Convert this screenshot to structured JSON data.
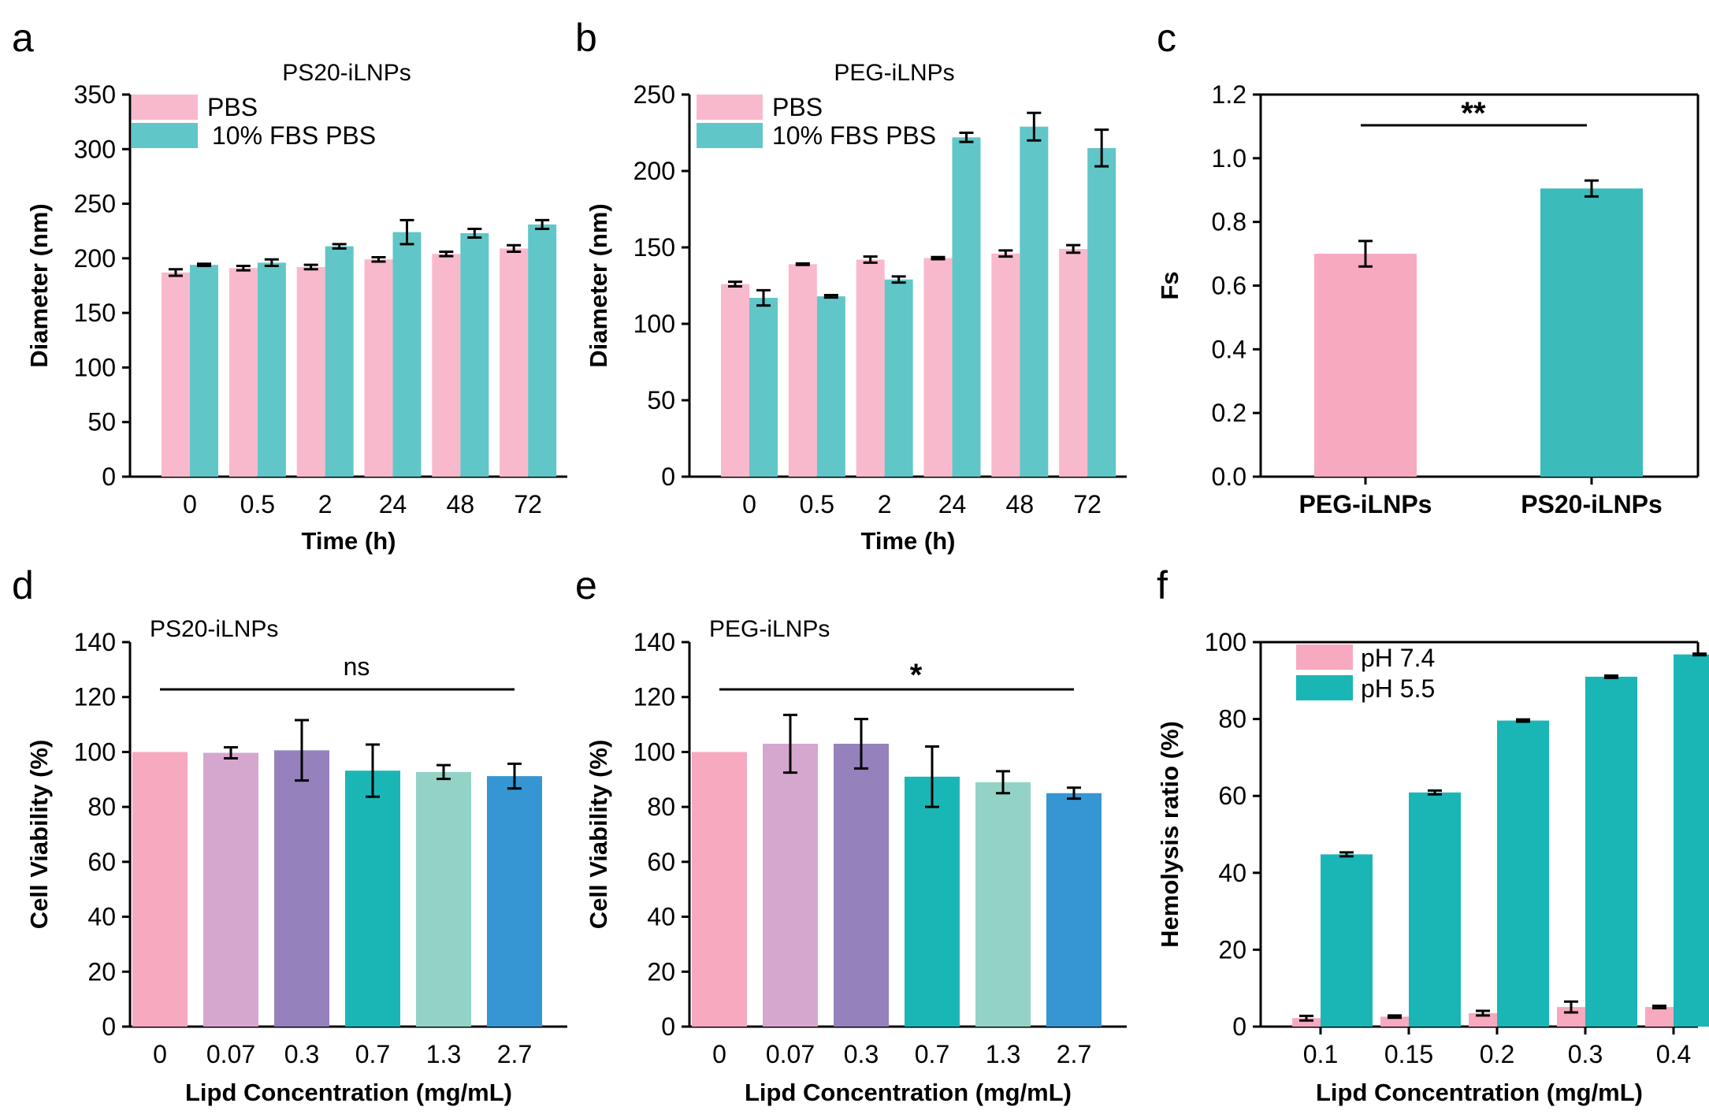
{
  "figure": {
    "colors": {
      "pink": "#f9b9cd",
      "teal": "#61c6c7",
      "teal_dark": "#3bbbb9",
      "pink_c": "#f7a9c0",
      "viab": [
        "#f7a9c0",
        "#d6a7ce",
        "#9581bb",
        "#1ab6b6",
        "#93d3c6",
        "#3596d3"
      ],
      "hemo_pink": "#f7a9c0",
      "hemo_teal": "#1ab6b6"
    }
  },
  "chart_data": [
    {
      "id": "a",
      "panel_letter": "a",
      "type": "bar",
      "title": "PS20-iLNPs",
      "xlabel": "Time (h)",
      "ylabel": "Diameter (nm)",
      "ylim": [
        0,
        350
      ],
      "yticks": [
        "0",
        "50",
        "100",
        "150",
        "200",
        "250",
        "300",
        "350"
      ],
      "categories": [
        "0",
        "0.5",
        "2",
        "24",
        "48",
        "72"
      ],
      "series": [
        {
          "name": "PBS",
          "values": [
            187,
            191,
            192,
            199,
            204,
            209
          ],
          "errors": [
            3,
            2,
            2,
            2,
            2,
            3
          ]
        },
        {
          "name": "10% FBS PBS",
          "values": [
            194,
            196,
            211,
            224,
            223,
            231
          ],
          "errors": [
            1,
            3,
            2,
            11,
            4,
            4
          ]
        }
      ]
    },
    {
      "id": "b",
      "panel_letter": "b",
      "type": "bar",
      "title": "PEG-iLNPs",
      "xlabel": "Time (h)",
      "ylabel": "Diameter (nm)",
      "ylim": [
        0,
        250
      ],
      "yticks": [
        "0",
        "50",
        "100",
        "150",
        "200",
        "250"
      ],
      "categories": [
        "0",
        "0.5",
        "2",
        "24",
        "48",
        "72"
      ],
      "series": [
        {
          "name": "PBS",
          "values": [
            126,
            139,
            142,
            143,
            146,
            149
          ],
          "errors": [
            1.5,
            0.5,
            2,
            0.7,
            2,
            2.5
          ]
        },
        {
          "name": "10% FBS PBS",
          "values": [
            117,
            118,
            129,
            222,
            229,
            215
          ],
          "errors": [
            5,
            0.8,
            2,
            3,
            9,
            12
          ]
        }
      ]
    },
    {
      "id": "c",
      "panel_letter": "c",
      "type": "bar",
      "title": "",
      "xlabel": "",
      "ylabel": "Fs",
      "ylim": [
        0,
        1.2
      ],
      "yticks": [
        "0.0",
        "0.2",
        "0.4",
        "0.6",
        "0.8",
        "1.0",
        "1.2"
      ],
      "categories": [
        "PEG-iLNPs",
        "PS20-iLNPs"
      ],
      "values": [
        0.7,
        0.905
      ],
      "errors": [
        0.04,
        0.025
      ],
      "significance": "**"
    },
    {
      "id": "d",
      "panel_letter": "d",
      "type": "bar",
      "title": "PS20-iLNPs",
      "xlabel": "Lipd Concentration (mg/mL)",
      "ylabel": "Cell Viability (%)",
      "ylim": [
        0,
        140
      ],
      "yticks": [
        "0",
        "20",
        "40",
        "60",
        "80",
        "100",
        "120",
        "140"
      ],
      "categories": [
        "0",
        "0.07",
        "0.3",
        "0.7",
        "1.3",
        "2.7"
      ],
      "values": [
        100,
        99.7,
        100.6,
        93.2,
        92.7,
        91.2
      ],
      "errors": [
        0,
        2,
        11,
        9.5,
        2.5,
        4.5
      ],
      "significance": "ns"
    },
    {
      "id": "e",
      "panel_letter": "e",
      "type": "bar",
      "title": "PEG-iLNPs",
      "xlabel": "Lipd Concentration (mg/mL)",
      "ylabel": "Cell Viability (%)",
      "ylim": [
        0,
        140
      ],
      "yticks": [
        "0",
        "20",
        "40",
        "60",
        "80",
        "100",
        "120",
        "140"
      ],
      "categories": [
        "0",
        "0.07",
        "0.3",
        "0.7",
        "1.3",
        "2.7"
      ],
      "values": [
        100,
        103,
        103,
        91,
        89,
        85
      ],
      "errors": [
        0,
        10.5,
        9,
        11,
        4,
        2
      ],
      "significance": "*"
    },
    {
      "id": "f",
      "panel_letter": "f",
      "type": "bar",
      "title": "",
      "xlabel": "Lipd Concentration (mg/mL)",
      "ylabel": "Hemolysis ratio (%)",
      "ylim": [
        0,
        100
      ],
      "yticks": [
        "0",
        "20",
        "40",
        "60",
        "80",
        "100"
      ],
      "categories": [
        "0.1",
        "0.15",
        "0.2",
        "0.3",
        "0.4"
      ],
      "series": [
        {
          "name": "pH 7.4",
          "values": [
            2.2,
            2.6,
            3.5,
            5.1,
            5.1
          ],
          "errors": [
            0.6,
            0.3,
            0.6,
            1.4,
            0.3
          ]
        },
        {
          "name": "pH 5.5",
          "values": [
            44.8,
            60.9,
            79.6,
            91.0,
            96.8
          ],
          "errors": [
            0.5,
            0.5,
            0.3,
            0.3,
            0.2
          ]
        }
      ]
    }
  ]
}
